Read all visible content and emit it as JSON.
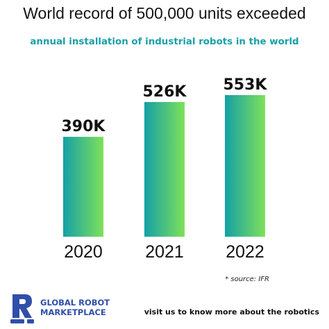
{
  "header": {
    "title": "World record of 500,000 units exceeded",
    "subtitle": "annual installation of industrial robots in the world"
  },
  "chart_data": {
    "type": "bar",
    "categories": [
      "2020",
      "2021",
      "2022"
    ],
    "values": [
      390,
      526,
      553
    ],
    "data_labels": [
      "390K",
      "526K",
      "553K"
    ],
    "title": "World record of 500,000 units exceeded",
    "subtitle": "annual installation of industrial robots in the world",
    "xlabel": "",
    "ylabel": "",
    "ylim": [
      0,
      553
    ],
    "grid": false,
    "legend": "none",
    "bar_gradient": [
      "#14a0a6",
      "#7ee15a"
    ]
  },
  "source": "* source: IFR",
  "footer": {
    "brand_line1": "GLOBAL ROBOT",
    "brand_line2": "MARKETPLACE",
    "logo_icon": "robot-arm-r-icon",
    "brand_color": "#2f4fa8",
    "cta": "visit us to know more about the robotics"
  }
}
